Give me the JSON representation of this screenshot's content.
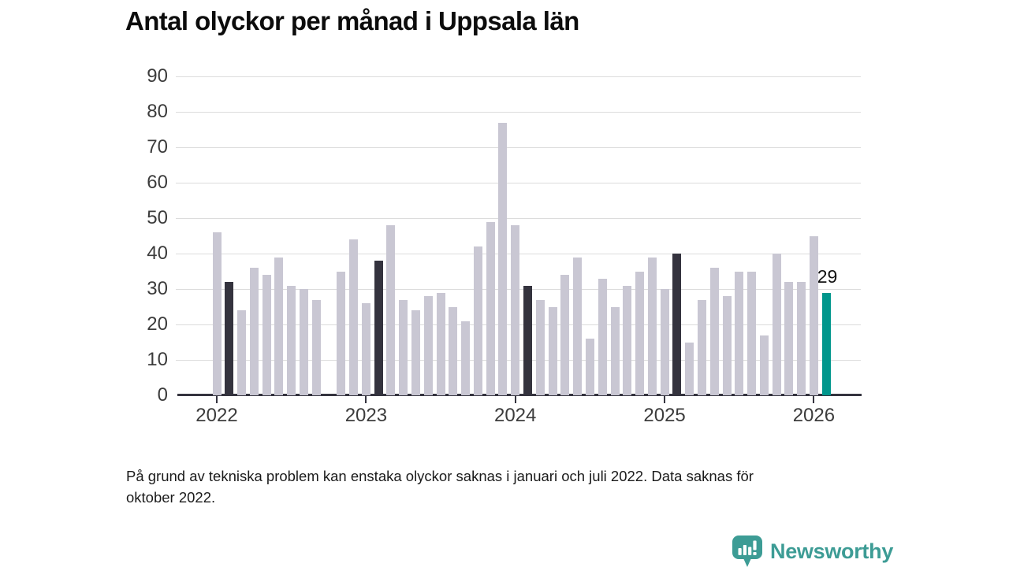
{
  "title": "Antal olyckor per månad i Uppsala län",
  "footnote_lines": [
    "På grund av tekniska problem kan enstaka olyckor saknas i januari och juli 2022. Data saknas för",
    "oktober 2022."
  ],
  "branding": {
    "wordmark": "Newsworthy",
    "icon": "newsworthy-speech-bubble-chart-icon",
    "teal": "#3d9c95"
  },
  "chart_data": {
    "type": "bar",
    "title": "Antal olyckor per månad i Uppsala län",
    "x": [
      "2022-01",
      "2022-02",
      "2022-03",
      "2022-04",
      "2022-05",
      "2022-06",
      "2022-07",
      "2022-08",
      "2022-09",
      "2022-10",
      "2022-11",
      "2022-12",
      "2023-01",
      "2023-02",
      "2023-03",
      "2023-04",
      "2023-05",
      "2023-06",
      "2023-07",
      "2023-08",
      "2023-09",
      "2023-10",
      "2023-11",
      "2023-12",
      "2024-01",
      "2024-02",
      "2024-03",
      "2024-04",
      "2024-05",
      "2024-06",
      "2024-07",
      "2024-08",
      "2024-09",
      "2024-10",
      "2024-11",
      "2024-12",
      "2025-01",
      "2025-02",
      "2025-03",
      "2025-04",
      "2025-05",
      "2025-06",
      "2025-07",
      "2025-08",
      "2025-09",
      "2025-10",
      "2025-11",
      "2025-12",
      "2026-01",
      "2026-02"
    ],
    "values": [
      46,
      32,
      24,
      36,
      34,
      39,
      31,
      30,
      27,
      null,
      35,
      44,
      26,
      38,
      48,
      27,
      24,
      28,
      29,
      25,
      21,
      42,
      49,
      77,
      48,
      31,
      27,
      25,
      34,
      39,
      16,
      33,
      25,
      31,
      35,
      39,
      30,
      40,
      15,
      27,
      36,
      28,
      35,
      35,
      17,
      40,
      32,
      32,
      45,
      29
    ],
    "missing_months": [
      "2022-10"
    ],
    "bar_color_default": "#c9c7d3",
    "highlight_dark": {
      "color": "#34333e",
      "months": [
        "2022-02",
        "2023-02",
        "2024-02",
        "2025-02"
      ]
    },
    "highlight_latest": {
      "color": "#00968c",
      "month": "2026-02",
      "data_label": "29"
    },
    "ylim": [
      0,
      90
    ],
    "yticks": [
      0,
      10,
      20,
      30,
      40,
      50,
      60,
      70,
      80,
      90
    ],
    "xticks": [
      {
        "label": "2022",
        "month": "2022-01"
      },
      {
        "label": "2023",
        "month": "2023-01"
      },
      {
        "label": "2024",
        "month": "2024-01"
      },
      {
        "label": "2025",
        "month": "2025-01"
      },
      {
        "label": "2026",
        "month": "2026-01"
      }
    ],
    "grid": "horizontal",
    "gridline_color": "#dcdcdc",
    "axis_color": "#35343f",
    "legend": "none"
  }
}
